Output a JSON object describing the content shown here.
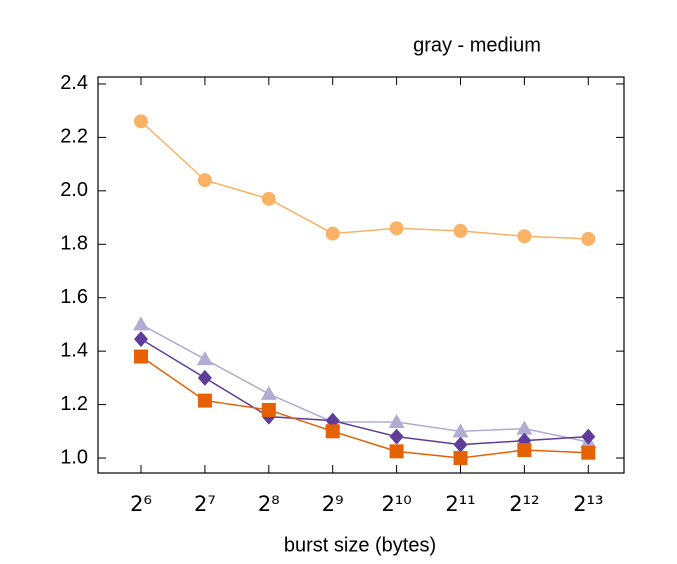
{
  "chart_data": {
    "type": "line",
    "title": "gray - medium",
    "xlabel": "burst size (bytes)",
    "categories": [
      "2⁶",
      "2⁷",
      "2⁸",
      "2⁹",
      "2¹⁰",
      "2¹¹",
      "2¹²",
      "2¹³"
    ],
    "series": [
      {
        "color": "#f9b366",
        "marker": "circle",
        "values": [
          2.26,
          2.04,
          1.97,
          1.84,
          1.86,
          1.85,
          1.83,
          1.82
        ]
      },
      {
        "color": "#b2abd2",
        "marker": "triangle",
        "values": [
          1.5,
          1.37,
          1.24,
          1.135,
          1.135,
          1.1,
          1.11,
          1.06
        ]
      },
      {
        "color": "#5e3c99",
        "marker": "diamond",
        "values": [
          1.445,
          1.3,
          1.155,
          1.14,
          1.08,
          1.05,
          1.065,
          1.08
        ]
      },
      {
        "color": "#e66101",
        "marker": "square",
        "values": [
          1.38,
          1.215,
          1.18,
          1.1,
          1.025,
          1.0,
          1.03,
          1.02
        ]
      }
    ],
    "ylim": [
      0.944,
      2.426
    ],
    "yticks": [
      {
        "value": 1,
        "label": "1.0"
      },
      1.2,
      1.4,
      1.6,
      1.8,
      {
        "value": 2,
        "label": "2.0"
      },
      2.2,
      2.4
    ],
    "grid": false
  }
}
